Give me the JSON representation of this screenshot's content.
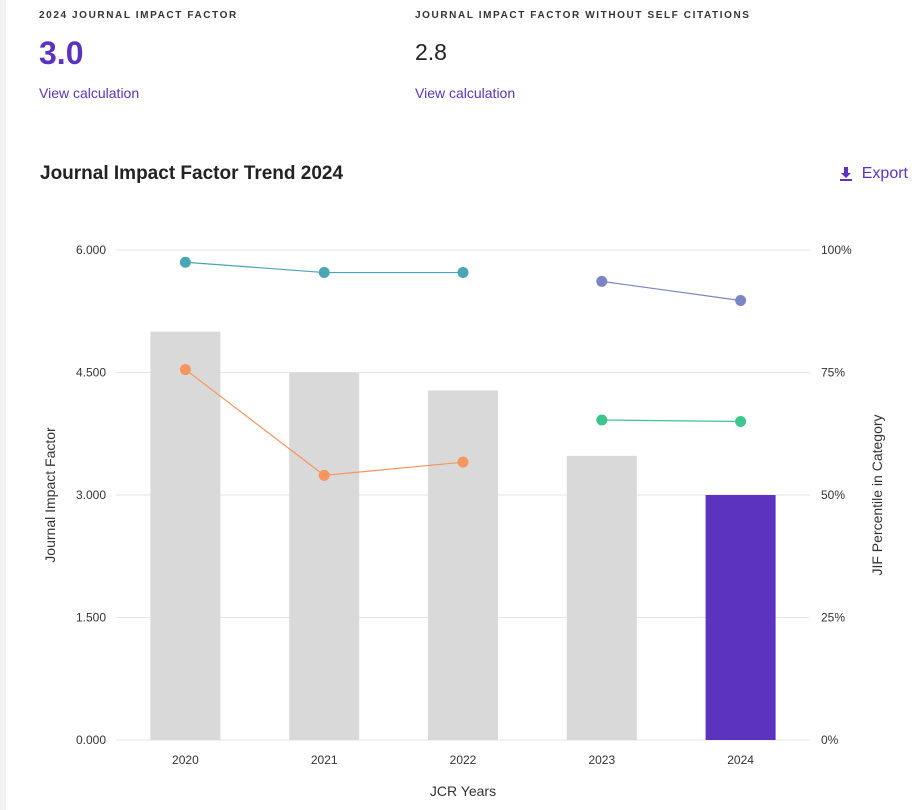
{
  "metrics": {
    "jif": {
      "label": "2024 JOURNAL IMPACT FACTOR",
      "value": "3.0",
      "link": "View calculation"
    },
    "jif_no_self": {
      "label": "JOURNAL IMPACT FACTOR WITHOUT SELF CITATIONS",
      "value": "2.8",
      "link": "View calculation"
    }
  },
  "section": {
    "title": "Journal Impact Factor Trend 2024",
    "export_label": "Export"
  },
  "colors": {
    "accent": "#5c33be",
    "bar_default": "#d9d9d9",
    "teal": "#4aa5b5",
    "orange": "#f7955f",
    "slate": "#7b85bf",
    "green": "#3ec58f",
    "grid": "#e6e6e6"
  },
  "chart_data": {
    "type": "bar",
    "title": "Journal Impact Factor Trend 2024",
    "xlabel": "JCR Years",
    "ylabel": "Journal Impact Factor",
    "y2label": "JIF Percentile in Category",
    "categories": [
      "2020",
      "2021",
      "2022",
      "2023",
      "2024"
    ],
    "values": [
      5.0,
      4.5,
      4.28,
      3.48,
      3.0
    ],
    "highlight_index": 4,
    "ylim": [
      0,
      6
    ],
    "yticks": [
      "0.000",
      "1.500",
      "3.000",
      "4.500",
      "6.000"
    ],
    "y2lim": [
      0,
      100
    ],
    "y2ticks": [
      "0%",
      "25%",
      "50%",
      "75%",
      "100%"
    ],
    "grid": true,
    "lines": [
      {
        "name": "teal",
        "color": "#4aa5b5",
        "x": [
          "2020",
          "2021",
          "2022"
        ],
        "values": [
          97.5,
          95.4,
          95.4
        ]
      },
      {
        "name": "orange",
        "color": "#f7955f",
        "x": [
          "2020",
          "2021",
          "2022"
        ],
        "values": [
          75.6,
          54.0,
          56.7
        ]
      },
      {
        "name": "slate",
        "color": "#7b85bf",
        "x": [
          "2023",
          "2024"
        ],
        "values": [
          93.6,
          89.7
        ]
      },
      {
        "name": "green",
        "color": "#3ec58f",
        "x": [
          "2023",
          "2024"
        ],
        "values": [
          65.3,
          65.0
        ]
      }
    ]
  }
}
